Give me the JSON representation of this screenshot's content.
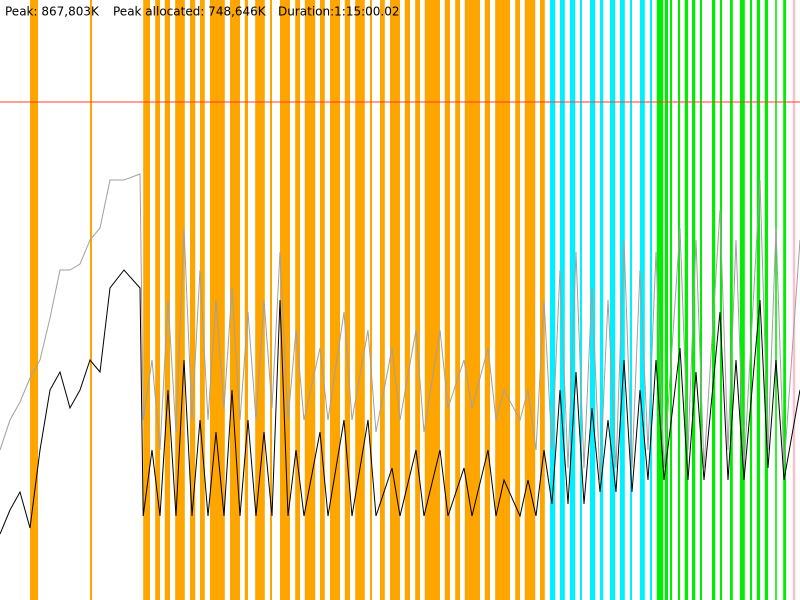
{
  "chart_data": {
    "type": "line",
    "labels": [
      "Peak: 867,803K",
      "Peak allocated: 748,646K",
      "Duration:1:15:00.02"
    ],
    "xlim": [
      0,
      100
    ],
    "ylim": [
      0,
      100
    ],
    "reference_line": {
      "value": 83,
      "color": "#ff3b30"
    },
    "bands": [
      {
        "color": "#ffa500",
        "ranges": [
          [
            3.75,
            4.75
          ],
          [
            11.25,
            11.5
          ],
          [
            17.9,
            18.75
          ],
          [
            19.4,
            20
          ],
          [
            20.6,
            21.25
          ],
          [
            21.9,
            23.1
          ],
          [
            23.75,
            24.4
          ],
          [
            25,
            25.6
          ],
          [
            26.25,
            28.1
          ],
          [
            28.75,
            30
          ],
          [
            30.6,
            31
          ],
          [
            31.9,
            33.1
          ],
          [
            33.75,
            34
          ],
          [
            35,
            36.25
          ],
          [
            36.9,
            37.5
          ],
          [
            38.1,
            39.4
          ],
          [
            40,
            40.6
          ],
          [
            41.25,
            42.5
          ],
          [
            43.1,
            43.75
          ],
          [
            44.4,
            45.6
          ],
          [
            46.25,
            46.5
          ],
          [
            47.5,
            48.1
          ],
          [
            48.75,
            50
          ],
          [
            50.6,
            51.25
          ],
          [
            51.9,
            52.5
          ],
          [
            53.1,
            55
          ],
          [
            55.6,
            56.25
          ],
          [
            56.9,
            57.5
          ],
          [
            58.1,
            60
          ],
          [
            60.6,
            61.25
          ],
          [
            61.9,
            63.75
          ],
          [
            64.4,
            65
          ],
          [
            65.6,
            66.9
          ],
          [
            67.5,
            68.1
          ]
        ]
      },
      {
        "color": "#00f0ff",
        "ranges": [
          [
            68.75,
            69.4
          ],
          [
            70,
            70.6
          ],
          [
            71.25,
            71.9
          ],
          [
            72.5,
            72.75
          ],
          [
            73.75,
            74.4
          ],
          [
            75,
            75.4
          ],
          [
            76.25,
            76.9
          ],
          [
            77.5,
            78.1
          ],
          [
            78.75,
            79
          ],
          [
            80,
            80.6
          ],
          [
            81.25,
            81.5
          ]
        ]
      },
      {
        "color": "#00ee00",
        "ranges": [
          [
            82.1,
            82.9
          ],
          [
            83.1,
            83.5
          ],
          [
            83.75,
            84
          ],
          [
            84.75,
            85
          ],
          [
            85.6,
            86
          ],
          [
            86.5,
            86.9
          ],
          [
            87.5,
            87.75
          ],
          [
            89,
            89.4
          ],
          [
            90,
            90.25
          ],
          [
            91.25,
            91.6
          ],
          [
            92.5,
            93.1
          ],
          [
            93.75,
            94
          ],
          [
            94.6,
            95
          ],
          [
            95.6,
            96
          ],
          [
            96.9,
            97.1
          ],
          [
            97.9,
            98.25
          ]
        ]
      },
      {
        "color": "#ffc0cb",
        "ranges": [
          [
            99.1,
            99.4
          ]
        ]
      }
    ],
    "x": [
      0,
      1.25,
      2.5,
      3.75,
      5,
      6.25,
      7.5,
      8.75,
      10,
      11.25,
      12.5,
      13.75,
      15.5,
      17.5,
      17.9,
      19,
      20,
      21,
      22,
      23,
      24,
      25,
      26,
      27,
      28,
      29,
      30,
      31,
      32,
      33,
      34,
      35,
      36,
      37,
      38,
      40,
      41,
      43,
      44,
      46,
      47,
      49,
      50,
      52,
      53,
      55,
      56,
      58,
      59,
      61,
      62,
      63,
      65,
      66,
      67,
      68,
      69,
      70,
      71,
      72,
      73,
      74,
      75,
      76,
      77,
      78,
      79,
      80,
      81,
      82,
      83,
      85,
      86,
      87,
      88,
      90,
      91,
      92,
      93,
      95,
      96,
      97,
      98,
      100
    ],
    "series": [
      {
        "color": "#a0a0a0",
        "values": [
          25,
          30,
          33,
          37,
          40,
          47,
          55,
          55,
          56,
          60,
          62,
          70,
          70,
          71,
          30,
          40,
          25,
          50,
          28,
          62,
          30,
          55,
          30,
          50,
          32,
          52,
          30,
          48,
          30,
          50,
          32,
          58,
          30,
          45,
          30,
          42,
          30,
          48,
          30,
          45,
          28,
          42,
          30,
          45,
          28,
          45,
          32,
          40,
          32,
          42,
          30,
          35,
          30,
          35,
          25,
          50,
          25,
          55,
          22,
          58,
          22,
          52,
          20,
          50,
          22,
          60,
          22,
          55,
          25,
          58,
          22,
          62,
          25,
          60,
          22,
          65,
          25,
          60,
          22,
          70,
          25,
          62,
          22,
          60
        ]
      },
      {
        "color": "#000000",
        "values": [
          11,
          15,
          18,
          12,
          25,
          35,
          38,
          32,
          35,
          40,
          38,
          52,
          55,
          52,
          14,
          25,
          14,
          35,
          14,
          40,
          14,
          30,
          14,
          28,
          14,
          35,
          14,
          30,
          14,
          28,
          14,
          50,
          14,
          25,
          14,
          28,
          14,
          30,
          14,
          30,
          14,
          22,
          14,
          25,
          14,
          25,
          14,
          22,
          14,
          25,
          14,
          20,
          14,
          20,
          14,
          25,
          16,
          35,
          16,
          38,
          16,
          32,
          18,
          30,
          18,
          40,
          18,
          35,
          20,
          40,
          20,
          42,
          20,
          38,
          20,
          48,
          20,
          40,
          20,
          50,
          22,
          40,
          20,
          35
        ]
      }
    ]
  }
}
